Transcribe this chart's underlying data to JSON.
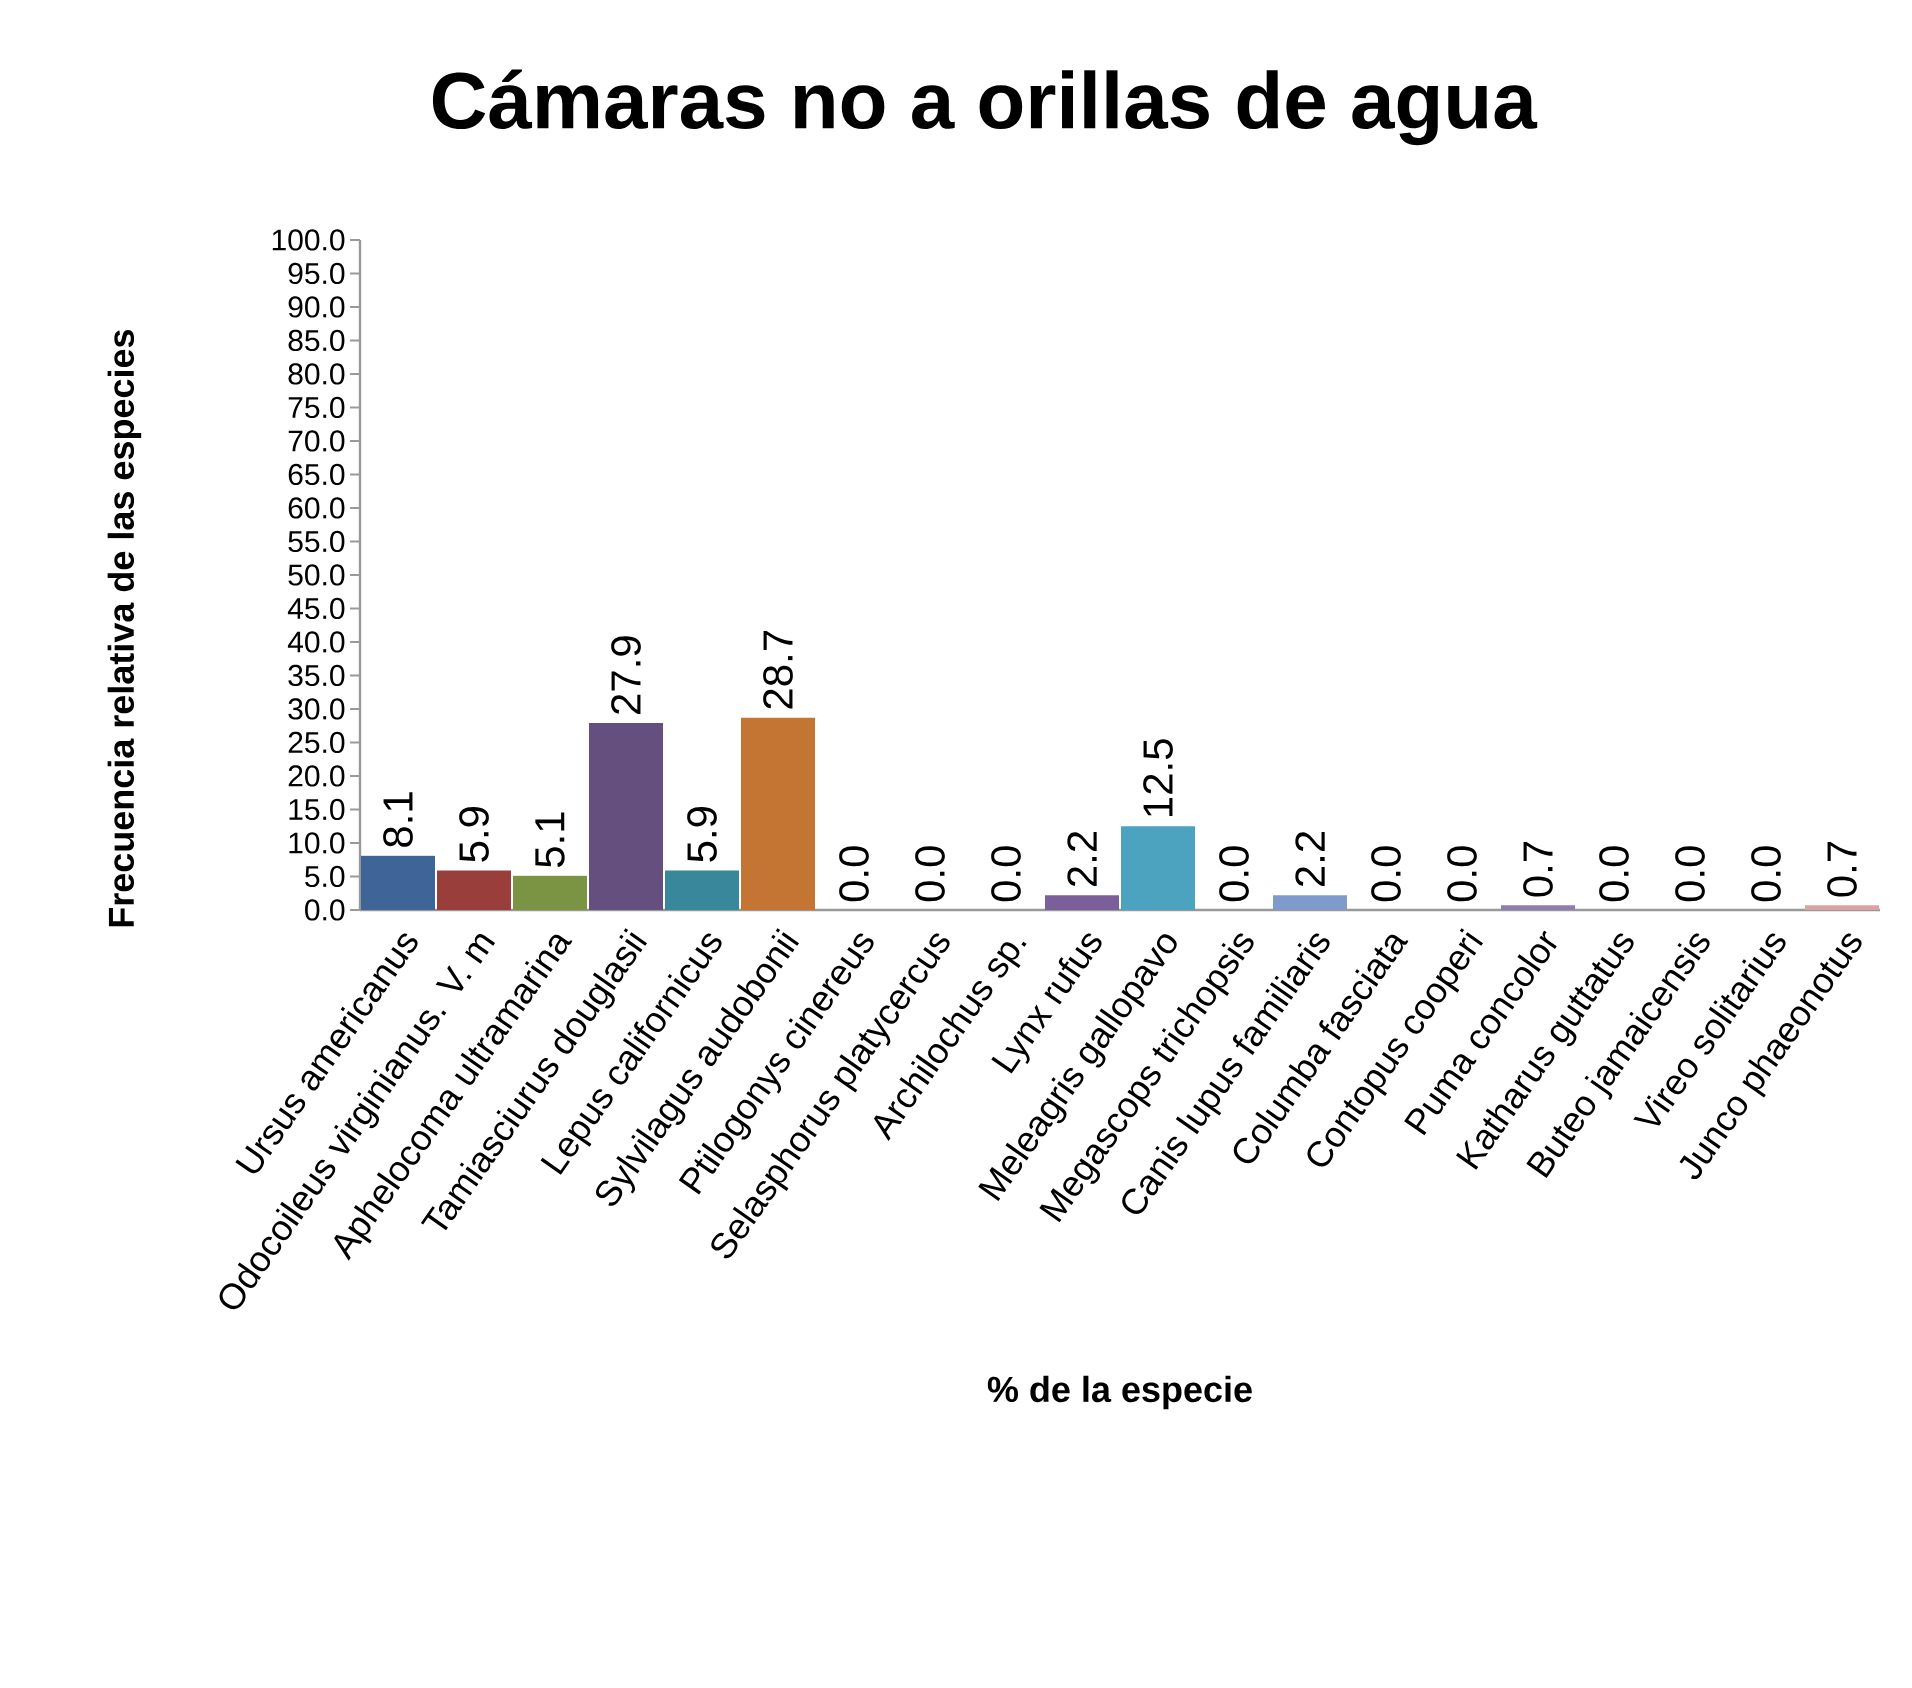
{
  "chart_data": {
    "type": "bar",
    "title": "Cámaras no a orillas de agua",
    "xlabel": "% de la especie",
    "ylabel": "Frecuencia relativa de las especies",
    "categories": [
      "Ursus americanus",
      "Odocoileus virginianus. V. m",
      "Aphelocoma  ultramarina",
      "Tamiasciurus douglasii",
      "Lepus californicus",
      "Sylvilagus audobonii",
      "Ptilogonys cinereus",
      "Selasphorus platycercus",
      "Archilochus sp.",
      "Lynx rufus",
      "Meleagris gallopavo",
      "Megascops trichopsis",
      "Canis lupus familiaris",
      "Columba fasciata",
      "Contopus cooperi",
      "Puma concolor",
      "Katharus guttatus",
      "Buteo jamaicensis",
      "Vireo solitarius",
      "Junco phaeonotus"
    ],
    "values": [
      8.1,
      5.9,
      5.1,
      27.9,
      5.9,
      28.7,
      0.0,
      0.0,
      0.0,
      2.2,
      12.5,
      0.0,
      2.2,
      0.0,
      0.0,
      0.7,
      0.0,
      0.0,
      0.0,
      0.7
    ],
    "colors": [
      "#3f6497",
      "#9a3e3c",
      "#7b9444",
      "#654f7e",
      "#39879a",
      "#c57533",
      "#4f81bd",
      "#c0504d",
      "#9bbb59",
      "#7b5f9b",
      "#4ba3bf",
      "#f79646",
      "#7f9bcb",
      "#c37e7d",
      "#a9c47f",
      "#8f7dae",
      "#6bb3cd",
      "#f9ab6b",
      "#a6b9da",
      "#d9a3a2"
    ],
    "ylim": [
      0,
      100
    ],
    "yticks": [
      {
        "value": 0,
        "label": "0.0"
      },
      {
        "value": 5,
        "label": "5.0"
      },
      {
        "value": 10,
        "label": "10.0"
      },
      {
        "value": 15,
        "label": "15.0"
      },
      {
        "value": 20,
        "label": "20.0"
      },
      {
        "value": 25,
        "label": "25.0"
      },
      {
        "value": 30,
        "label": "30.0"
      },
      {
        "value": 35,
        "label": "35.0"
      },
      {
        "value": 40,
        "label": "40.0"
      },
      {
        "value": 45,
        "label": "45.0"
      },
      {
        "value": 50,
        "label": "50.0"
      },
      {
        "value": 55,
        "label": "55.0"
      },
      {
        "value": 60,
        "label": "60.0"
      },
      {
        "value": 65,
        "label": "65.0"
      },
      {
        "value": 70,
        "label": "70.0"
      },
      {
        "value": 75,
        "label": "75.0"
      },
      {
        "value": 80,
        "label": "80.0"
      },
      {
        "value": 85,
        "label": "85.0"
      },
      {
        "value": 90,
        "label": "90.0"
      },
      {
        "value": 95,
        "label": "95.0"
      },
      {
        "value": 100,
        "label": "100.0"
      }
    ],
    "value_labels": [
      "8.1",
      "5.9",
      "5.1",
      "27.9",
      "5.9",
      "28.7",
      "0.0",
      "0.0",
      "0.0",
      "2.2",
      "12.5",
      "0.0",
      "2.2",
      "0.0",
      "0.0",
      "0.7",
      "0.0",
      "0.0",
      "0.0",
      "0.7"
    ],
    "grid": false
  }
}
